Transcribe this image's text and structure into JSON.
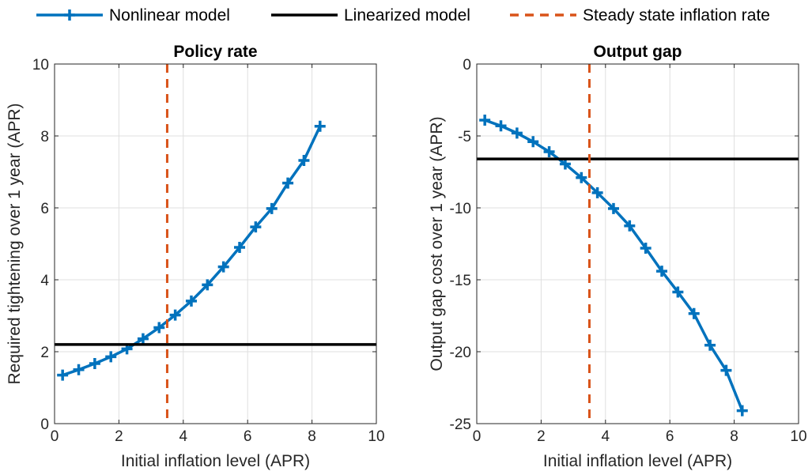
{
  "legend": {
    "placement": "top",
    "items": [
      {
        "key": "nonlinear",
        "label": "Nonlinear model",
        "color": "#0072BD",
        "style": "solid-plus"
      },
      {
        "key": "linearized",
        "label": "Linearized model",
        "color": "#000000",
        "style": "solid"
      },
      {
        "key": "steady",
        "label": "Steady state inflation rate",
        "color": "#D95319",
        "style": "dashed"
      }
    ]
  },
  "chart_data": [
    {
      "type": "line",
      "title": "Policy rate",
      "xlabel": "Initial inflation level (APR)",
      "ylabel": "Required tightening over 1 year (APR)",
      "xlim": [
        0,
        10
      ],
      "ylim": [
        0,
        10
      ],
      "xticks": [
        "0",
        "2",
        "4",
        "6",
        "8",
        "10"
      ],
      "yticks": [
        "0",
        "2",
        "4",
        "6",
        "8",
        "10"
      ],
      "grid": true,
      "series": [
        {
          "key": "nonlinear",
          "x": [
            0.25,
            0.75,
            1.25,
            1.75,
            2.25,
            2.75,
            3.25,
            3.75,
            4.25,
            4.75,
            5.25,
            5.75,
            6.25,
            6.75,
            7.25,
            7.75,
            8.25
          ],
          "y": [
            1.35,
            1.5,
            1.67,
            1.86,
            2.08,
            2.36,
            2.67,
            3.02,
            3.41,
            3.86,
            4.36,
            4.9,
            5.47,
            5.98,
            6.69,
            7.32,
            8.27
          ]
        },
        {
          "key": "linearized",
          "x": [
            0,
            10
          ],
          "y": [
            2.2,
            2.2
          ]
        }
      ],
      "vline": {
        "key": "steady",
        "x": 3.5
      }
    },
    {
      "type": "line",
      "title": "Output gap",
      "xlabel": "Initial inflation level (APR)",
      "ylabel": "Output gap cost over 1 year (APR)",
      "xlim": [
        0,
        10
      ],
      "ylim": [
        -25,
        0
      ],
      "xticks": [
        "0",
        "2",
        "4",
        "6",
        "8",
        "10"
      ],
      "yticks": [
        "-25",
        "-20",
        "-15",
        "-10",
        "-5",
        "0"
      ],
      "grid": true,
      "series": [
        {
          "key": "nonlinear",
          "x": [
            0.25,
            0.75,
            1.25,
            1.75,
            2.25,
            2.75,
            3.25,
            3.75,
            4.25,
            4.75,
            5.25,
            5.75,
            6.25,
            6.75,
            7.25,
            7.75,
            8.25
          ],
          "y": [
            -3.9,
            -4.3,
            -4.8,
            -5.4,
            -6.1,
            -6.95,
            -7.9,
            -8.95,
            -10.05,
            -11.25,
            -12.8,
            -14.4,
            -15.85,
            -17.35,
            -19.55,
            -21.3,
            -24.1
          ]
        },
        {
          "key": "linearized",
          "x": [
            0,
            10
          ],
          "y": [
            -6.6,
            -6.6
          ]
        }
      ],
      "vline": {
        "key": "steady",
        "x": 3.5
      }
    }
  ]
}
